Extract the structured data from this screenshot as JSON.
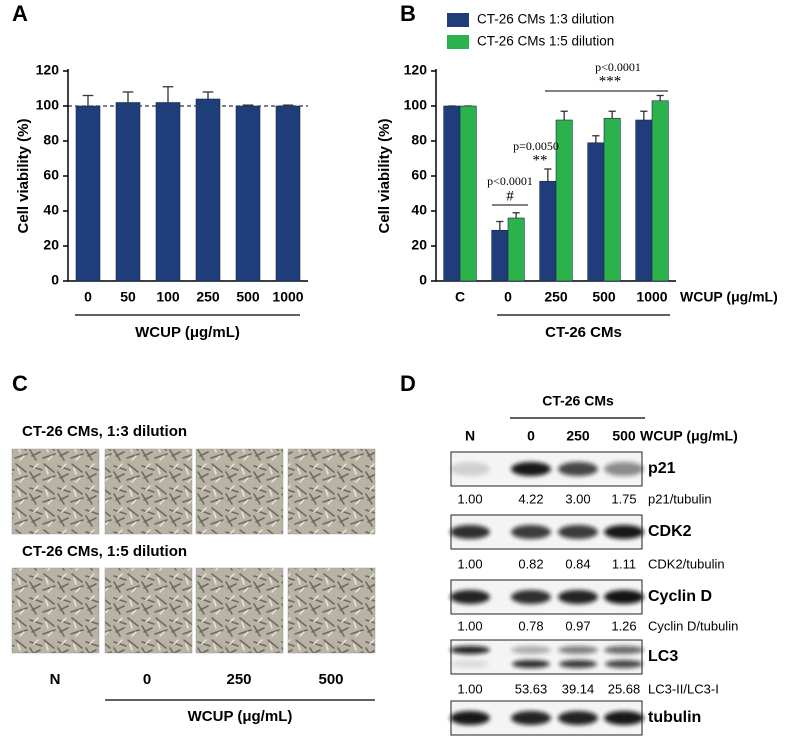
{
  "chart_data": [
    {
      "type": "bar",
      "panel_label": "A",
      "y_label": "Cell viability (%)",
      "x_label": "WCUP (μg/mL)",
      "categories": [
        "0",
        "50",
        "100",
        "250",
        "500",
        "1000"
      ],
      "values": [
        100,
        102,
        102,
        104,
        100,
        100
      ],
      "errors": [
        6,
        6,
        9,
        4,
        0.5,
        0.5
      ],
      "color": "#1f3d78",
      "reference_line": 100,
      "ylim": [
        0,
        120
      ],
      "yticks": [
        0,
        20,
        40,
        60,
        80,
        100,
        120
      ]
    },
    {
      "type": "bar",
      "panel_label": "B",
      "y_label": "Cell viability (%)",
      "x_label": "WCUP (μg/mL)",
      "group_label": "CT-26 CMs",
      "categories": [
        "C",
        "0",
        "250",
        "500",
        "1000"
      ],
      "series": [
        {
          "name": "CT-26 CMs 1:3 dilution",
          "color": "#1f3d78",
          "values": [
            100,
            29,
            57,
            79,
            92
          ],
          "errors": [
            0,
            5,
            7,
            4,
            5
          ]
        },
        {
          "name": "CT-26 CMs 1:5 dilution",
          "color": "#2bb24c",
          "values": [
            100,
            36,
            92,
            93,
            103
          ],
          "errors": [
            0,
            3,
            5,
            4,
            3
          ]
        }
      ],
      "annotations": [
        {
          "p": "p<0.0001",
          "mark": "#"
        },
        {
          "p": "p=0.0050",
          "mark": "**"
        },
        {
          "p": "p<0.0001",
          "mark": "***"
        }
      ],
      "ylim": [
        0,
        120
      ],
      "yticks": [
        0,
        20,
        40,
        60,
        80,
        100,
        120
      ]
    }
  ],
  "panel_c": {
    "label": "C",
    "rows": [
      "CT-26 CMs, 1:3 dilution",
      "CT-26 CMs, 1:5 dilution"
    ],
    "columns": [
      "N",
      "0",
      "250",
      "500"
    ],
    "x_label": "WCUP (μg/mL)"
  },
  "panel_d": {
    "label": "D",
    "group": "CT-26 CMs",
    "columns": [
      "N",
      "0",
      "250",
      "500"
    ],
    "x_label": "WCUP (μg/mL)",
    "blots": [
      {
        "name": "p21",
        "ratios": [
          "1.00",
          "4.22",
          "3.00",
          "1.75"
        ],
        "ratio_label": "p21/tubulin"
      },
      {
        "name": "CDK2",
        "ratios": [
          "1.00",
          "0.82",
          "0.84",
          "1.11"
        ],
        "ratio_label": "CDK2/tubulin"
      },
      {
        "name": "Cyclin D",
        "ratios": [
          "1.00",
          "0.78",
          "0.97",
          "1.26"
        ],
        "ratio_label": "Cyclin D/tubulin"
      },
      {
        "name": "LC3",
        "ratios": [
          "1.00",
          "53.63",
          "39.14",
          "25.68"
        ],
        "ratio_label": "LC3-II/LC3-I"
      },
      {
        "name": "tubulin"
      }
    ]
  }
}
